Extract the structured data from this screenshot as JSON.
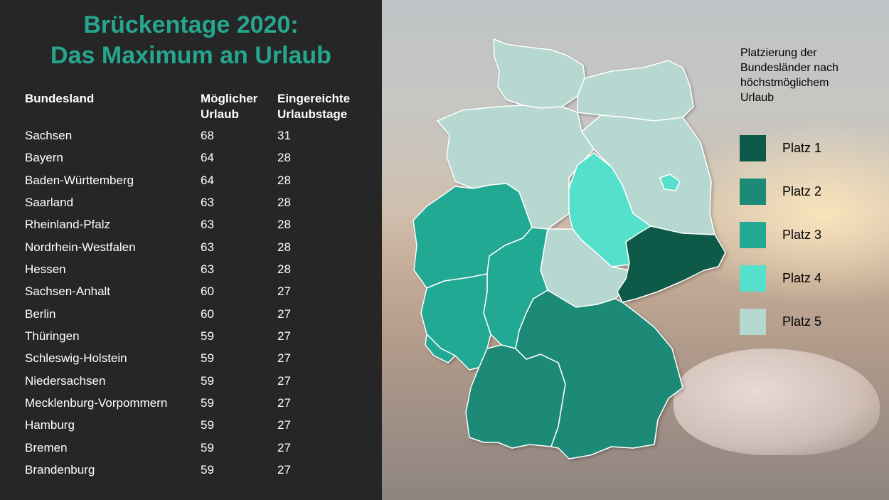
{
  "title": {
    "line1": "Brückentage 2020:",
    "line2": "Das Maximum an Urlaub"
  },
  "table": {
    "headers": {
      "state": "Bundesland",
      "max_leave_l1": "Möglicher",
      "max_leave_l2": "Urlaub",
      "submitted_l1": "Eingereichte",
      "submitted_l2": "Urlaubstage"
    },
    "rows": [
      {
        "state": "Sachsen",
        "max": "68",
        "days": "31"
      },
      {
        "state": "Bayern",
        "max": "64",
        "days": "28"
      },
      {
        "state": "Baden-Württemberg",
        "max": "64",
        "days": "28"
      },
      {
        "state": "Saarland",
        "max": "63",
        "days": "28"
      },
      {
        "state": "Rheinland-Pfalz",
        "max": "63",
        "days": "28"
      },
      {
        "state": "Nordrhein-Westfalen",
        "max": "63",
        "days": "28"
      },
      {
        "state": "Hessen",
        "max": "63",
        "days": "28"
      },
      {
        "state": "Sachsen-Anhalt",
        "max": "60",
        "days": "27"
      },
      {
        "state": "Berlin",
        "max": "60",
        "days": "27"
      },
      {
        "state": "Thüringen",
        "max": "59",
        "days": "27"
      },
      {
        "state": "Schleswig-Holstein",
        "max": "59",
        "days": "27"
      },
      {
        "state": "Niedersachsen",
        "max": "59",
        "days": "27"
      },
      {
        "state": "Mecklenburg-Vorpommern",
        "max": "59",
        "days": "27"
      },
      {
        "state": "Hamburg",
        "max": "59",
        "days": "27"
      },
      {
        "state": "Bremen",
        "max": "59",
        "days": "27"
      },
      {
        "state": "Brandenburg",
        "max": "59",
        "days": "27"
      }
    ]
  },
  "legend": {
    "title_l1": "Platzierung der",
    "title_l2": "Bundesländer nach",
    "title_l3": "höchstmöglichem",
    "title_l4": "Urlaub",
    "items": [
      {
        "label": "Platz 1",
        "color": "#0e5a4a"
      },
      {
        "label": "Platz 2",
        "color": "#1c8a76"
      },
      {
        "label": "Platz 3",
        "color": "#22a993"
      },
      {
        "label": "Platz 4",
        "color": "#55e0cc"
      },
      {
        "label": "Platz 5",
        "color": "#b6d8d1"
      }
    ]
  },
  "colors": {
    "title": "#25a68e",
    "panel": "#262626"
  }
}
